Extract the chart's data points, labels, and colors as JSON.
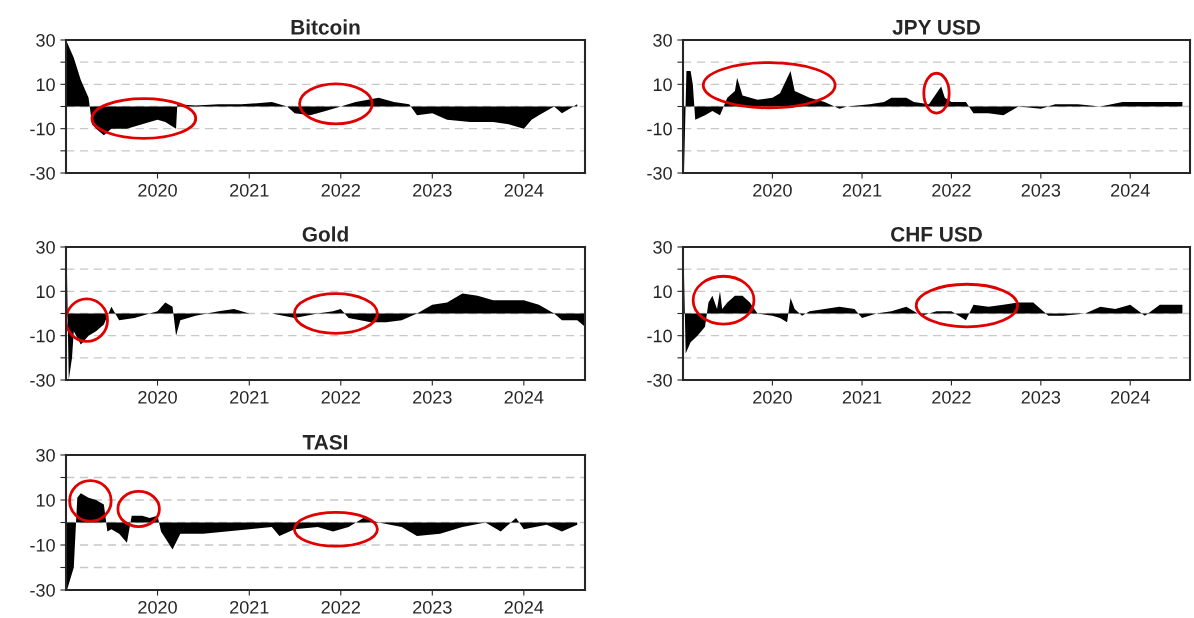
{
  "chart_data": [
    {
      "type": "area",
      "title": "Bitcoin",
      "xlim": [
        "2019-01",
        "2024-09"
      ],
      "ylim": [
        -30,
        30
      ],
      "xticks": [
        "2020",
        "2021",
        "2022",
        "2023",
        "2024"
      ],
      "yticks": [
        30,
        {
          "value": 20,
          "label": null
        },
        10,
        {
          "value": 0,
          "label": null
        },
        -10,
        {
          "value": -20,
          "label": null
        },
        -30
      ],
      "grid": "y",
      "legend": false,
      "x": [
        "2019-01",
        "2019-02",
        "2019-03",
        "2019-04",
        "2019-04-15",
        "2019-05",
        "2019-06",
        "2019-07",
        "2019-09",
        "2019-10",
        "2019-12",
        "2020-01",
        "2020-02",
        "2020-03-15",
        "2020-03-20",
        "2020-06",
        "2020-09",
        "2020-12",
        "2021-02",
        "2021-04",
        "2021-06",
        "2021-07",
        "2021-09",
        "2021-11",
        "2022-01",
        "2022-03",
        "2022-06",
        "2022-08",
        "2022-10",
        "2022-11",
        "2023-01",
        "2023-03",
        "2023-06",
        "2023-09",
        "2023-11",
        "2024-01",
        "2024-02",
        "2024-03",
        "2024-05",
        "2024-06",
        "2024-08"
      ],
      "series": [
        {
          "color": "#000000",
          "values": [
            30,
            22,
            12,
            4,
            -8,
            -10,
            -13,
            -10,
            -10,
            -9,
            -7,
            -6,
            -7,
            -10,
            1,
            0.5,
            1,
            1,
            1.5,
            2,
            0,
            -3,
            -4,
            -2,
            0,
            2,
            4,
            2,
            1,
            -4,
            -3,
            -6,
            -7,
            -7,
            -8,
            -10,
            -6,
            -4,
            0,
            -3,
            1
          ]
        }
      ]
    },
    {
      "type": "area",
      "title": "JPY USD",
      "xlim": [
        "2019-01",
        "2024-09"
      ],
      "ylim": [
        -30,
        30
      ],
      "xticks": [
        "2020",
        "2021",
        "2022",
        "2023",
        "2024"
      ],
      "yticks": [
        30,
        {
          "value": 20,
          "label": null
        },
        10,
        {
          "value": 0,
          "label": null
        },
        -10,
        {
          "value": -20,
          "label": null
        },
        -30
      ],
      "grid": "y",
      "legend": false,
      "x": [
        "2019-01-05",
        "2019-01-15",
        "2019-02-01",
        "2019-02-10",
        "2019-02-20",
        "2019-04",
        "2019-05",
        "2019-06",
        "2019-07",
        "2019-08",
        "2019-08-10",
        "2019-09",
        "2019-11",
        "2020-01",
        "2020-02",
        "2020-03-15",
        "2020-04",
        "2020-06",
        "2020-08",
        "2020-10",
        "2020-11",
        "2021-02",
        "2021-04",
        "2021-05",
        "2021-07",
        "2021-08",
        "2021-10",
        "2021-11-20",
        "2021-12-05",
        "2022-01",
        "2022-03",
        "2022-04",
        "2022-06",
        "2022-08",
        "2022-10",
        "2023-01",
        "2023-03",
        "2023-06",
        "2023-09",
        "2023-12",
        "2024-03",
        "2024-06",
        "2024-08"
      ],
      "series": [
        {
          "color": "#000000",
          "values": [
            -30,
            16,
            16,
            10,
            -6,
            -4,
            -2,
            -4,
            4,
            7,
            13,
            5,
            3,
            4,
            6,
            16,
            7,
            4,
            2,
            -1,
            0,
            1,
            2,
            4,
            4,
            2,
            1,
            9,
            4,
            2,
            2,
            -3,
            -3,
            -4,
            0,
            -1,
            1,
            1,
            0,
            2,
            2,
            2,
            2
          ]
        }
      ]
    },
    {
      "type": "area",
      "title": "Gold",
      "xlim": [
        "2019-01",
        "2024-09"
      ],
      "ylim": [
        -30,
        30
      ],
      "xticks": [
        "2020",
        "2021",
        "2022",
        "2023",
        "2024"
      ],
      "yticks": [
        30,
        {
          "value": 20,
          "label": null
        },
        10,
        {
          "value": 0,
          "label": null
        },
        -10,
        {
          "value": -20,
          "label": null
        },
        -30
      ],
      "grid": "y",
      "legend": false,
      "x": [
        "2019-01-05",
        "2019-01-12",
        "2019-01-25",
        "2019-02",
        "2019-03",
        "2019-04",
        "2019-05",
        "2019-06",
        "2019-07",
        "2019-08",
        "2019-10",
        "2019-12",
        "2020-01",
        "2020-02",
        "2020-03-01",
        "2020-03-15",
        "2020-04",
        "2020-06",
        "2020-09",
        "2020-11",
        "2021-01",
        "2021-04",
        "2021-07",
        "2021-10",
        "2021-12",
        "2022-01",
        "2022-02",
        "2022-05",
        "2022-07",
        "2022-09",
        "2022-11",
        "2023-01",
        "2023-03",
        "2023-05",
        "2023-07",
        "2023-09",
        "2023-11",
        "2024-01",
        "2024-03",
        "2024-05",
        "2024-06",
        "2024-08",
        "2024-09"
      ],
      "series": [
        {
          "color": "#000000",
          "values": [
            18,
            -30,
            -20,
            -8,
            -14,
            -10,
            -8,
            -5,
            3,
            -3,
            -2,
            0,
            1,
            5,
            3,
            -10,
            -3,
            -1,
            1,
            2,
            0,
            0,
            -2,
            0,
            1,
            2,
            -2,
            -4,
            -4,
            -3,
            0,
            4,
            5,
            9,
            8,
            6,
            6,
            6,
            4,
            0,
            -3,
            -3,
            -6
          ]
        }
      ]
    },
    {
      "type": "area",
      "title": "CHF USD",
      "xlim": [
        "2019-01",
        "2024-09"
      ],
      "ylim": [
        -30,
        30
      ],
      "xticks": [
        "2020",
        "2021",
        "2022",
        "2023",
        "2024"
      ],
      "yticks": [
        30,
        {
          "value": 20,
          "label": null
        },
        10,
        {
          "value": 0,
          "label": null
        },
        -10,
        {
          "value": -20,
          "label": null
        },
        -30
      ],
      "grid": "y",
      "legend": false,
      "x": [
        "2019-01-05",
        "2019-01-12",
        "2019-02",
        "2019-03",
        "2019-04",
        "2019-04-15",
        "2019-05",
        "2019-05-20",
        "2019-06",
        "2019-06-10",
        "2019-07",
        "2019-08",
        "2019-09",
        "2019-10",
        "2019-11",
        "2020-01",
        "2020-02",
        "2020-03-01",
        "2020-03-15",
        "2020-04",
        "2020-05",
        "2020-06",
        "2020-08",
        "2020-10",
        "2020-12",
        "2021-01",
        "2021-03",
        "2021-05",
        "2021-07",
        "2021-09",
        "2021-11",
        "2022-01",
        "2022-03",
        "2022-04",
        "2022-06",
        "2022-08",
        "2022-10",
        "2022-12",
        "2023-02",
        "2023-04",
        "2023-07",
        "2023-09",
        "2023-11",
        "2024-01",
        "2024-03",
        "2024-05",
        "2024-08"
      ],
      "series": [
        {
          "color": "#000000",
          "values": [
            18,
            -18,
            -13,
            -10,
            -6,
            5,
            8,
            2,
            10,
            2,
            5,
            8,
            8,
            5,
            0,
            -1,
            -2,
            -4,
            7,
            2,
            -1,
            1,
            2,
            3,
            2,
            -2,
            0,
            1,
            3,
            -1,
            1,
            1,
            -3,
            4,
            3,
            4,
            5,
            5,
            -1,
            -1,
            0,
            3,
            2,
            4,
            -1,
            4,
            4
          ]
        }
      ]
    },
    {
      "type": "area",
      "title": "TASI",
      "xlim": [
        "2019-01",
        "2024-09"
      ],
      "ylim": [
        -30,
        30
      ],
      "xticks": [
        "2020",
        "2021",
        "2022",
        "2023",
        "2024"
      ],
      "yticks": [
        30,
        {
          "value": 20,
          "label": null
        },
        10,
        {
          "value": 0,
          "label": null
        },
        -10,
        {
          "value": -20,
          "label": null
        },
        -30
      ],
      "grid": "y",
      "legend": false,
      "x": [
        "2019-01-05",
        "2019-02",
        "2019-02-15",
        "2019-03",
        "2019-04",
        "2019-05",
        "2019-06",
        "2019-06-15",
        "2019-07",
        "2019-08",
        "2019-09",
        "2019-09-20",
        "2019-11",
        "2019-12",
        "2020-01",
        "2020-01-15",
        "2020-03",
        "2020-04",
        "2020-07",
        "2020-10",
        "2021-01",
        "2021-04",
        "2021-05",
        "2021-07",
        "2021-10",
        "2021-12",
        "2022-02",
        "2022-04",
        "2022-06",
        "2022-09",
        "2022-11",
        "2023-02",
        "2023-05",
        "2023-08",
        "2023-10",
        "2023-12",
        "2024-01",
        "2024-04",
        "2024-06",
        "2024-08"
      ],
      "series": [
        {
          "color": "#000000",
          "values": [
            -30,
            -20,
            11,
            13,
            11,
            10,
            8,
            -4,
            -3,
            -5,
            -9,
            3,
            3,
            2,
            3,
            -4,
            -12,
            -5,
            -5,
            -4,
            -3,
            -2,
            -6,
            -3,
            -2,
            -4,
            -2,
            2,
            0,
            -2,
            -6,
            -5,
            -2,
            0,
            -4,
            2,
            -3,
            -1,
            -4,
            -1
          ]
        }
      ]
    }
  ]
}
